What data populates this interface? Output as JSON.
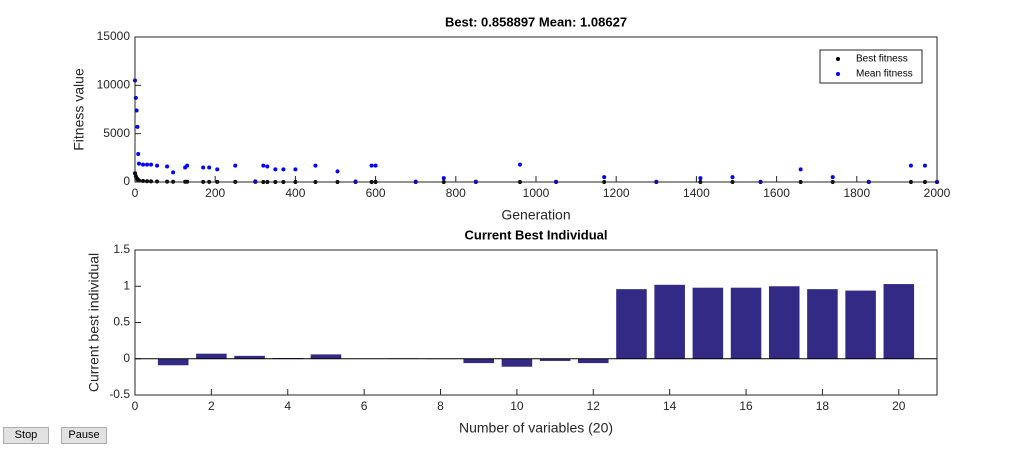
{
  "chart_data": [
    {
      "type": "scatter",
      "title": "Best: 0.858897 Mean: 1.08627",
      "x_label": "Generation",
      "y_label": "Fitness value",
      "x": [
        0,
        2,
        4,
        6,
        8,
        10,
        20,
        30,
        40,
        55,
        80,
        95,
        125,
        130,
        170,
        185,
        205,
        250,
        300,
        320,
        330,
        350,
        370,
        400,
        450,
        505,
        550,
        590,
        600,
        700,
        770,
        850,
        960,
        1050,
        1170,
        1300,
        1410,
        1490,
        1560,
        1660,
        1740,
        1830,
        1935,
        1970,
        2000
      ],
      "series": [
        {
          "name": "Best fitness",
          "color": "#000000",
          "values": [
            900,
            600,
            400,
            300,
            200,
            150,
            100,
            80,
            60,
            50,
            40,
            30,
            20,
            20,
            15,
            15,
            10,
            10,
            8,
            6,
            6,
            5,
            5,
            4,
            3,
            3,
            2,
            2,
            2,
            2,
            1.5,
            1.5,
            1.2,
            1.2,
            1,
            1,
            1,
            1,
            0.95,
            0.95,
            0.9,
            0.9,
            0.88,
            0.87,
            0.858897
          ]
        },
        {
          "name": "Mean fitness",
          "color": "#0000ff",
          "values": [
            10500,
            8700,
            7400,
            5700,
            2900,
            1900,
            1800,
            1800,
            1800,
            1700,
            1600,
            1000,
            1500,
            1700,
            1500,
            1500,
            1300,
            1700,
            60,
            1700,
            1600,
            1300,
            1300,
            1300,
            1700,
            1100,
            50,
            1700,
            1700,
            40,
            400,
            40,
            1800,
            30,
            500,
            30,
            400,
            500,
            30,
            1300,
            500,
            30,
            1700,
            1700,
            1.08627
          ]
        }
      ],
      "xlim": [
        0,
        2000
      ],
      "xticks": [
        0,
        200,
        400,
        600,
        800,
        1000,
        1200,
        1400,
        1600,
        1800,
        2000
      ],
      "ylim": [
        0,
        15000
      ],
      "yticks": [
        0,
        5000,
        10000,
        15000
      ],
      "legend": "northeast"
    },
    {
      "type": "bar",
      "title": "Current Best Individual",
      "x_label": "Number of variables (20)",
      "y_label": "Current best individual",
      "x": [
        1,
        2,
        3,
        4,
        5,
        6,
        7,
        8,
        9,
        10,
        11,
        12,
        13,
        14,
        15,
        16,
        17,
        18,
        19,
        20
      ],
      "values": [
        -0.09,
        0.07,
        0.04,
        0.01,
        0.06,
        0,
        0.005,
        -0.005,
        -0.06,
        -0.11,
        -0.03,
        -0.06,
        0.96,
        1.02,
        0.98,
        0.98,
        1.0,
        0.96,
        0.94,
        1.03
      ],
      "color": "#332a86",
      "xlim": [
        0,
        21
      ],
      "xticks": [
        0,
        2,
        4,
        6,
        8,
        10,
        12,
        14,
        16,
        18,
        20
      ],
      "ylim": [
        -0.5,
        1.5
      ],
      "yticks": [
        -0.5,
        0,
        0.5,
        1,
        1.5
      ]
    }
  ],
  "buttons": [
    "Stop",
    "Pause"
  ]
}
